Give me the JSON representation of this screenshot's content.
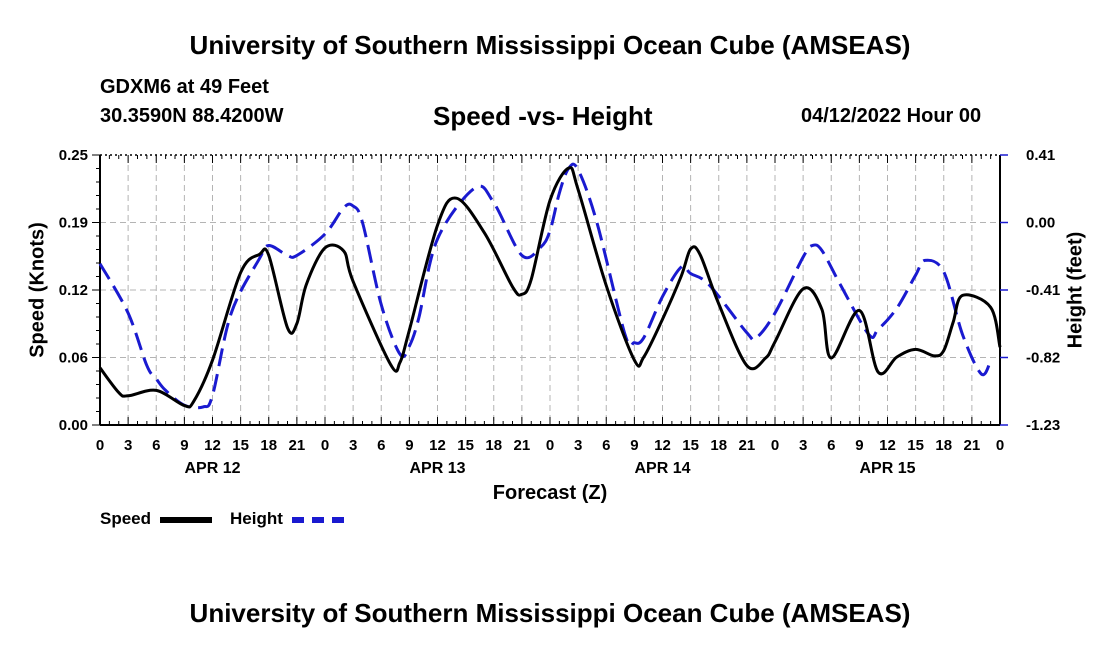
{
  "header": {
    "title": "University of Southern Mississippi Ocean Cube (AMSEAS)",
    "station": "GDXM6 at 49 Feet",
    "coordinates": "30.3590N  88.4200W",
    "subtitle": "Speed -vs- Height",
    "datetime": "04/12/2022 Hour 00"
  },
  "footer": {
    "title": "University of Southern Mississippi Ocean Cube (AMSEAS)"
  },
  "legend": {
    "speed_label": "Speed",
    "height_label": "Height"
  },
  "colors": {
    "speed": "#000000",
    "height": "#1a1ad0",
    "grid": "#b4b4b4"
  },
  "chart_data": {
    "type": "line",
    "title": "Speed -vs- Height",
    "xlabel": "Forecast (Z)",
    "ylabel_left": "Speed (Knots)",
    "ylabel_right": "Height (feet)",
    "x_range_hours": [
      0,
      96
    ],
    "x_tick_labels": [
      "0",
      "3",
      "6",
      "9",
      "12",
      "15",
      "18",
      "21",
      "0",
      "3",
      "6",
      "9",
      "12",
      "15",
      "18",
      "21",
      "0",
      "3",
      "6",
      "9",
      "12",
      "15",
      "18",
      "21",
      "0",
      "3",
      "6",
      "9",
      "12",
      "15",
      "18",
      "21",
      "0"
    ],
    "day_labels": [
      {
        "label": "APR 12",
        "hour": 12
      },
      {
        "label": "APR 13",
        "hour": 36
      },
      {
        "label": "APR 14",
        "hour": 60
      },
      {
        "label": "APR 15",
        "hour": 84
      }
    ],
    "ylim_left": [
      0,
      0.25
    ],
    "ytick_left_values": [
      0,
      0.0625,
      0.125,
      0.1875,
      0.25
    ],
    "ytick_left_labels": [
      "0.00",
      "0.06",
      "0.12",
      "0.19",
      "0.25"
    ],
    "ylim_right": [
      -1.23,
      0.41
    ],
    "ytick_right_values": [
      -1.23,
      -0.82,
      -0.41,
      0.0,
      0.41
    ],
    "ytick_right_labels": [
      "-1.23",
      "-0.82",
      "-0.41",
      "0.00",
      "0.41"
    ],
    "grid": true,
    "series": [
      {
        "name": "Speed",
        "axis": "left",
        "style": "solid",
        "x": [
          0,
          2,
          3,
          6,
          9,
          10,
          12,
          15,
          17,
          18,
          20,
          21,
          22,
          24,
          26,
          27,
          31,
          32,
          33,
          36,
          38,
          41,
          44,
          45,
          46,
          48,
          50,
          51,
          54,
          57,
          58,
          60,
          62,
          63,
          64,
          66,
          69,
          71,
          72,
          75,
          77,
          78,
          81,
          83,
          85,
          87,
          89,
          90,
          91,
          92,
          95,
          96
        ],
        "y": [
          0.053,
          0.03,
          0.027,
          0.032,
          0.018,
          0.022,
          0.06,
          0.141,
          0.158,
          0.157,
          0.09,
          0.094,
          0.13,
          0.164,
          0.161,
          0.133,
          0.056,
          0.058,
          0.088,
          0.185,
          0.21,
          0.178,
          0.128,
          0.121,
          0.135,
          0.208,
          0.238,
          0.218,
          0.129,
          0.06,
          0.063,
          0.098,
          0.138,
          0.163,
          0.158,
          0.112,
          0.055,
          0.062,
          0.077,
          0.126,
          0.107,
          0.062,
          0.106,
          0.049,
          0.063,
          0.07,
          0.064,
          0.069,
          0.095,
          0.12,
          0.109,
          0.072
        ]
      },
      {
        "name": "Height",
        "axis": "right",
        "style": "dashed",
        "x": [
          0,
          3,
          5,
          6,
          7,
          9,
          11,
          12,
          14,
          17,
          18,
          20,
          21,
          24,
          26,
          27,
          28,
          30,
          32,
          33,
          34,
          36,
          40,
          42,
          45,
          47,
          48,
          49,
          50,
          51,
          53,
          56,
          57,
          58,
          60,
          62,
          63,
          65,
          69,
          70,
          72,
          75,
          76,
          77,
          79,
          82,
          83,
          85,
          87,
          88,
          90,
          92,
          94,
          95
        ],
        "y": [
          -0.25,
          -0.55,
          -0.87,
          -0.95,
          -1.02,
          -1.11,
          -1.12,
          -1.05,
          -0.55,
          -0.22,
          -0.14,
          -0.2,
          -0.2,
          -0.07,
          0.09,
          0.1,
          0.0,
          -0.5,
          -0.8,
          -0.75,
          -0.58,
          -0.1,
          0.21,
          0.12,
          -0.2,
          -0.15,
          -0.05,
          0.18,
          0.33,
          0.32,
          0.0,
          -0.68,
          -0.73,
          -0.7,
          -0.45,
          -0.27,
          -0.31,
          -0.38,
          -0.67,
          -0.7,
          -0.55,
          -0.21,
          -0.14,
          -0.17,
          -0.38,
          -0.68,
          -0.65,
          -0.52,
          -0.32,
          -0.23,
          -0.3,
          -0.68,
          -0.92,
          -0.84
        ]
      }
    ]
  }
}
